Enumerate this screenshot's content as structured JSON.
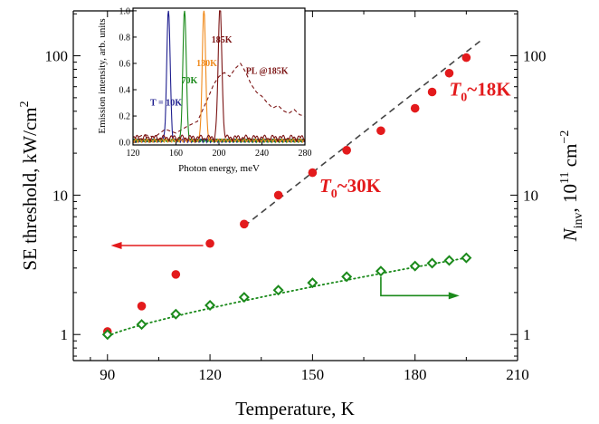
{
  "chart_data": [
    {
      "type": "scatter",
      "xlabel": "Temperature, K",
      "ylabel": "SE threshold, kW/cm",
      "ylabel_sup": "2",
      "ylabel_right": "N",
      "ylabel_right_sub": "inv",
      "ylabel_right_mid": ", 10",
      "ylabel_right_sup1": "11",
      "ylabel_right_unit": " cm",
      "ylabel_right_sup2": "−2",
      "xlim": [
        80,
        210
      ],
      "ylim": [
        0.65,
        210
      ],
      "yscale": "log",
      "x_ticks": [
        90,
        120,
        150,
        180,
        210
      ],
      "y_ticks": [
        1,
        10,
        100
      ],
      "colors": {
        "threshold": "#e31a1c",
        "ninv": "#1b8a1b",
        "fit": "#444444",
        "arrow_red": "#e31a1c",
        "arrow_green": "#1b8a1b"
      },
      "series": [
        {
          "kind": "threshold",
          "marker": "filled-circle",
          "x": [
            90,
            100,
            110,
            120,
            130,
            140,
            150,
            160,
            170,
            180,
            185,
            190,
            195
          ],
          "y": [
            1.05,
            1.6,
            2.7,
            4.5,
            6.2,
            10,
            14.5,
            21,
            29,
            42,
            55,
            75,
            97
          ]
        },
        {
          "kind": "ninv",
          "marker": "open-diamond",
          "x": [
            90,
            100,
            110,
            120,
            130,
            140,
            150,
            160,
            170,
            180,
            185,
            190,
            195
          ],
          "y": [
            1.0,
            1.18,
            1.4,
            1.62,
            1.85,
            2.08,
            2.35,
            2.6,
            2.85,
            3.1,
            3.25,
            3.4,
            3.55
          ]
        }
      ],
      "fit_line": {
        "x": [
          130,
          200
        ],
        "y": [
          6.0,
          133
        ]
      },
      "ninv_fit": {
        "x": [
          90,
          195
        ],
        "y": [
          0.97,
          3.55
        ]
      },
      "annotations": [
        {
          "text": "T",
          "sub": "0",
          "rest": "~18K",
          "x": 190,
          "y": 52
        },
        {
          "text": "T",
          "sub": "0",
          "rest": "~30K",
          "x": 152,
          "y": 10.5
        }
      ],
      "arrows": [
        {
          "kind": "arrow_red",
          "from": [
            118,
            4.35
          ],
          "to": [
            91,
            4.35
          ]
        },
        {
          "kind": "arrow_green",
          "from": [
            170,
            2.6
          ],
          "to": [
            170,
            1.9
          ],
          "to2": [
            193,
            1.9
          ]
        }
      ]
    },
    {
      "type": "line",
      "xlabel": "Photon energy, meV",
      "ylabel": "Emission intensity, arb. units",
      "xlim": [
        120,
        280
      ],
      "ylim": [
        -0.02,
        1.02
      ],
      "x_ticks": [
        120,
        160,
        200,
        240,
        280
      ],
      "y_ticks": [
        0.0,
        0.2,
        0.4,
        0.6,
        0.8,
        1.0
      ],
      "y_tick_labels": [
        "0.0",
        "0.2",
        "0.4",
        "0.6",
        "0.8",
        "1.0"
      ],
      "peak_labels": [
        {
          "text": "T = 10K",
          "x": 136,
          "y": 0.28,
          "color": "#1f1f8f"
        },
        {
          "text": "70K",
          "x": 165,
          "y": 0.45,
          "color": "#1b8a1b"
        },
        {
          "text": "130K",
          "x": 179,
          "y": 0.58,
          "color": "#f08a1c"
        },
        {
          "text": "185K",
          "x": 193,
          "y": 0.76,
          "color": "#7b1414"
        },
        {
          "text": "PL @185K",
          "x": 225,
          "y": 0.52,
          "color": "#7b1414"
        }
      ],
      "peaks": [
        {
          "center": 153,
          "width": 2.2,
          "height": 1.0,
          "color": "#1f1f8f"
        },
        {
          "center": 168,
          "width": 2.2,
          "height": 1.0,
          "color": "#1b8a1b"
        },
        {
          "center": 186,
          "width": 2.2,
          "height": 1.0,
          "color": "#f08a1c"
        },
        {
          "center": 201,
          "width": 2.4,
          "height": 1.0,
          "color": "#7b1414"
        }
      ],
      "pl_curve": {
        "color": "#7b1414",
        "x": [
          120,
          130,
          140,
          150,
          160,
          170,
          180,
          190,
          195,
          200,
          205,
          210,
          215,
          220,
          225,
          230,
          235,
          240,
          245,
          250,
          255,
          260,
          265,
          270,
          275,
          280
        ],
        "y": [
          0.02,
          0.06,
          0.04,
          0.1,
          0.07,
          0.12,
          0.16,
          0.34,
          0.44,
          0.5,
          0.53,
          0.5,
          0.56,
          0.6,
          0.53,
          0.44,
          0.38,
          0.35,
          0.3,
          0.26,
          0.28,
          0.24,
          0.22,
          0.25,
          0.21,
          0.2
        ]
      }
    }
  ]
}
